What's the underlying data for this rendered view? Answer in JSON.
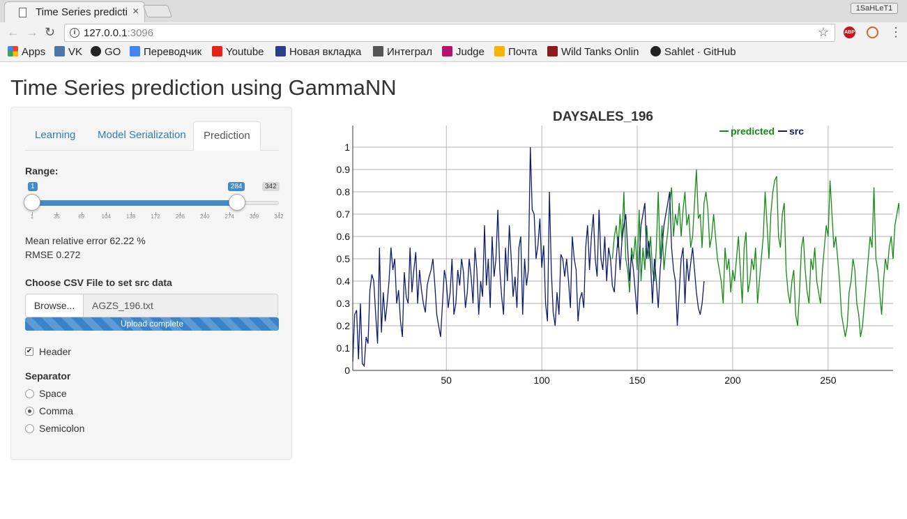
{
  "browser": {
    "tab_title": "Time Series predicti",
    "profile_name": "1SaHLeT1",
    "url_host": "127.0.0.1",
    "url_port": ":3096",
    "bookmarks": [
      "Apps",
      "VK",
      "GO",
      "Переводчик",
      "Youtube",
      "Новая вкладка",
      "Интеграл",
      "Judge",
      "Почта",
      "Wild Tanks Onlin",
      "Sahlet · GitHub"
    ]
  },
  "page": {
    "title": "Time Series prediction using GammaNN"
  },
  "sidebar": {
    "tabs": [
      "Learning",
      "Model Serialization",
      "Prediction"
    ],
    "active_tab": "Prediction",
    "range": {
      "label": "Range:",
      "from": "1",
      "to": "284",
      "max": "342",
      "from_value": 1,
      "to_value": 284,
      "min_value": 1,
      "max_value": 342,
      "ticks": [
        "1",
        "35",
        "69",
        "104",
        "138",
        "172",
        "206",
        "240",
        "274",
        "309",
        "342"
      ]
    },
    "metrics": {
      "error": "Mean relative error 62.22 %",
      "rmse": "RMSE 0.272"
    },
    "file": {
      "label": "Choose CSV File to set src data",
      "browse": "Browse...",
      "filename": "AGZS_196.txt",
      "progress_text": "Upload complete",
      "progress": 1.0
    },
    "header_checkbox": {
      "label": "Header",
      "checked": true
    },
    "separator": {
      "label": "Separator",
      "options": [
        "Space",
        "Comma",
        "Semicolon"
      ],
      "selected": "Comma"
    }
  },
  "colors": {
    "predicted": "#138a13",
    "src": "#0d1a6e",
    "accent": "#428bca"
  },
  "chart_data": {
    "type": "line",
    "title": "DAYSALES_196",
    "xlabel": "",
    "ylabel": "",
    "xlim": [
      1,
      284
    ],
    "ylim": [
      0,
      1
    ],
    "x_ticks": [
      "50",
      "100",
      "150",
      "200",
      "250"
    ],
    "y_ticks": [
      "0",
      "0.1",
      "0.2",
      "0.3",
      "0.4",
      "0.5",
      "0.6",
      "0.7",
      "0.8",
      "0.9",
      "1"
    ],
    "grid": true,
    "legend_position": "top-right",
    "series": [
      {
        "name": "src",
        "x_start": 1,
        "values": [
          0.04,
          0.25,
          0.27,
          0.05,
          0.3,
          0.03,
          0.02,
          0.15,
          0.12,
          0.36,
          0.43,
          0.4,
          0.25,
          0.12,
          0.55,
          0.17,
          0.35,
          0.22,
          0.3,
          0.4,
          0.55,
          0.45,
          0.5,
          0.3,
          0.36,
          0.22,
          0.15,
          0.44,
          0.33,
          0.3,
          0.55,
          0.35,
          0.45,
          0.53,
          0.3,
          0.45,
          0.36,
          0.3,
          0.26,
          0.38,
          0.42,
          0.45,
          0.5,
          0.38,
          0.25,
          0.2,
          0.15,
          0.3,
          0.45,
          0.4,
          0.28,
          0.35,
          0.5,
          0.25,
          0.3,
          0.45,
          0.38,
          0.5,
          0.44,
          0.28,
          0.35,
          0.5,
          0.42,
          0.3,
          0.55,
          0.45,
          0.25,
          0.4,
          0.33,
          0.65,
          0.38,
          0.5,
          0.28,
          0.6,
          0.42,
          0.5,
          0.72,
          0.45,
          0.33,
          0.25,
          0.55,
          0.4,
          0.65,
          0.5,
          0.33,
          0.42,
          0.28,
          0.55,
          0.6,
          0.25,
          0.5,
          0.38,
          0.45,
          1.0,
          0.72,
          0.7,
          0.5,
          0.56,
          0.68,
          0.46,
          0.56,
          0.3,
          0.22,
          0.8,
          0.45,
          0.26,
          0.2,
          0.35,
          0.25,
          0.52,
          0.5,
          0.42,
          0.5,
          0.4,
          0.28,
          0.6,
          0.5,
          0.45,
          0.22,
          0.32,
          0.35,
          0.28,
          0.55,
          0.65,
          0.45,
          0.6,
          0.7,
          0.5,
          0.42,
          0.72,
          0.5,
          0.45,
          0.6,
          0.4,
          0.55,
          0.5,
          0.38,
          0.35,
          0.5,
          0.6,
          0.45,
          0.58,
          0.65,
          0.7,
          0.55,
          0.4,
          0.52,
          0.45,
          0.35,
          0.25,
          0.5,
          0.65,
          0.7,
          0.75,
          0.5,
          0.58,
          0.48,
          0.3,
          0.5,
          0.4,
          0.28,
          0.45,
          0.55,
          0.65,
          0.7,
          0.75,
          0.8,
          0.55,
          0.45,
          0.4,
          0.2,
          0.35,
          0.5,
          0.55,
          0.3,
          0.5,
          0.4,
          0.48,
          0.55,
          0.45,
          0.35,
          0.28,
          0.25,
          0.3,
          0.4
        ]
      },
      {
        "name": "predicted",
        "x_start": 137,
        "values": [
          0.5,
          0.6,
          0.65,
          0.55,
          0.7,
          0.58,
          0.8,
          0.5,
          0.45,
          0.35,
          0.55,
          0.5,
          0.6,
          0.45,
          0.72,
          0.4,
          0.55,
          0.45,
          0.65,
          0.5,
          0.6,
          0.45,
          0.4,
          0.55,
          0.8,
          0.5,
          0.65,
          0.45,
          0.55,
          0.62,
          0.75,
          0.82,
          0.6,
          0.7,
          0.65,
          0.75,
          0.6,
          0.72,
          0.8,
          0.65,
          0.7,
          0.55,
          0.6,
          0.75,
          0.9,
          0.68,
          0.7,
          0.55,
          0.75,
          0.8,
          0.72,
          0.55,
          0.6,
          0.7,
          0.6,
          0.5,
          0.45,
          0.4,
          0.3,
          0.55,
          0.45,
          0.5,
          0.35,
          0.45,
          0.4,
          0.5,
          0.6,
          0.45,
          0.3,
          0.55,
          0.62,
          0.35,
          0.4,
          0.5,
          0.45,
          0.55,
          0.3,
          0.4,
          0.5,
          0.6,
          0.8,
          0.65,
          0.5,
          0.7,
          0.8,
          0.85,
          0.87,
          0.6,
          0.55,
          0.7,
          0.75,
          0.45,
          0.35,
          0.3,
          0.4,
          0.45,
          0.25,
          0.2,
          0.35,
          0.55,
          0.6,
          0.45,
          0.35,
          0.3,
          0.5,
          0.45,
          0.55,
          0.4,
          0.35,
          0.3,
          0.45,
          0.55,
          0.65,
          0.6,
          0.85,
          0.7,
          0.55,
          0.6,
          0.5,
          0.4,
          0.25,
          0.2,
          0.15,
          0.2,
          0.35,
          0.4,
          0.5,
          0.45,
          0.3,
          0.25,
          0.15,
          0.2,
          0.3,
          0.4,
          0.5,
          0.6,
          0.55,
          0.82,
          0.5,
          0.45,
          0.35,
          0.25,
          0.4,
          0.5,
          0.45,
          0.55,
          0.6,
          0.5,
          0.65,
          0.7,
          0.75,
          0.6,
          0.5,
          0.4,
          0.3,
          0.25,
          0.35,
          0.45,
          0.55,
          0.7,
          0.55,
          0.45,
          0.4,
          0.35,
          0.3,
          0.45,
          0.4,
          0.3,
          0.25,
          0.2,
          0.19,
          0.2,
          0.3,
          0.45,
          0.5,
          0.53
        ]
      }
    ]
  }
}
